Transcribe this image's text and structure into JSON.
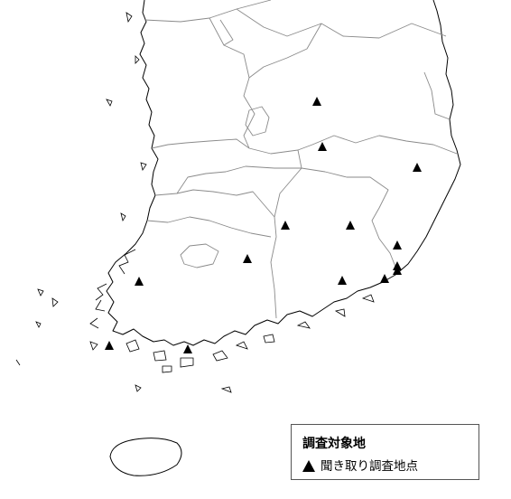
{
  "legend": {
    "title": "調査対象地",
    "item_symbol": "filled-triangle",
    "item_label": "聞き取り調査地点"
  },
  "colors": {
    "coastline": "#000000",
    "province_border": "#8a8a8a",
    "marker": "#000000",
    "background": "#ffffff"
  },
  "survey_site_count": 14
}
